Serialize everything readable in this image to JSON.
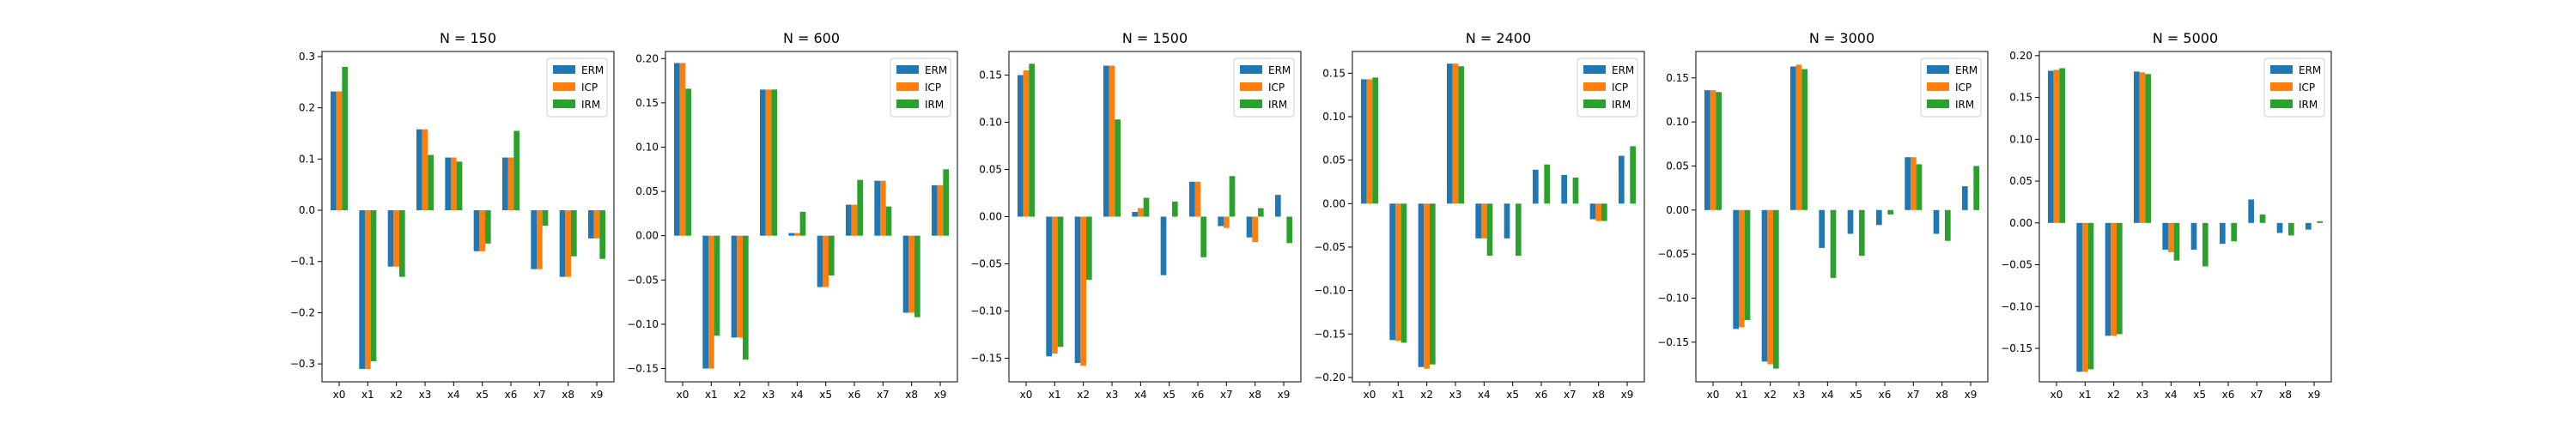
{
  "figure": {
    "background": "#ffffff"
  },
  "colors": {
    "ERM": "#1f77b4",
    "ICP": "#ff7f0e",
    "IRM": "#2ca02c"
  },
  "legend_entries": [
    "ERM",
    "ICP",
    "IRM"
  ],
  "legend_location": "upper right",
  "chart_data": [
    {
      "type": "bar",
      "title": "N = 150",
      "xlabel": "",
      "ylabel": "",
      "categories": [
        "x0",
        "x1",
        "x2",
        "x3",
        "x4",
        "x5",
        "x6",
        "x7",
        "x8",
        "x9"
      ],
      "series": [
        {
          "name": "ERM",
          "values": [
            0.232,
            -0.31,
            -0.11,
            0.158,
            0.103,
            -0.08,
            0.103,
            -0.115,
            -0.13,
            -0.055
          ]
        },
        {
          "name": "ICP",
          "values": [
            0.232,
            -0.31,
            -0.11,
            0.158,
            0.103,
            -0.08,
            0.103,
            -0.115,
            -0.13,
            -0.055
          ]
        },
        {
          "name": "IRM",
          "values": [
            0.28,
            -0.295,
            -0.13,
            0.108,
            0.095,
            -0.065,
            0.155,
            -0.03,
            -0.09,
            -0.095
          ]
        }
      ],
      "ylim": [
        -0.335,
        0.31
      ],
      "yticks": [
        -0.3,
        -0.2,
        -0.1,
        0.0,
        0.1,
        0.2,
        0.3
      ],
      "yticklabels": [
        "−0.3",
        "−0.2",
        "−0.1",
        "0.0",
        "0.1",
        "0.2",
        "0.3"
      ]
    },
    {
      "type": "bar",
      "title": "N = 600",
      "xlabel": "",
      "ylabel": "",
      "categories": [
        "x0",
        "x1",
        "x2",
        "x3",
        "x4",
        "x5",
        "x6",
        "x7",
        "x8",
        "x9"
      ],
      "series": [
        {
          "name": "ERM",
          "values": [
            0.195,
            -0.15,
            -0.115,
            0.165,
            0.003,
            -0.058,
            0.035,
            0.062,
            -0.087,
            0.057
          ]
        },
        {
          "name": "ICP",
          "values": [
            0.195,
            -0.15,
            -0.115,
            0.165,
            0.003,
            -0.058,
            0.035,
            0.062,
            -0.087,
            0.057
          ]
        },
        {
          "name": "IRM",
          "values": [
            0.166,
            -0.113,
            -0.14,
            0.165,
            0.027,
            -0.045,
            0.063,
            0.033,
            -0.092,
            0.075
          ]
        }
      ],
      "ylim": [
        -0.165,
        0.208
      ],
      "yticks": [
        -0.15,
        -0.1,
        -0.05,
        0.0,
        0.05,
        0.1,
        0.15,
        0.2
      ],
      "yticklabels": [
        "−0.15",
        "−0.10",
        "−0.05",
        "0.00",
        "0.05",
        "0.10",
        "0.15",
        "0.20"
      ]
    },
    {
      "type": "bar",
      "title": "N = 1500",
      "xlabel": "",
      "ylabel": "",
      "categories": [
        "x0",
        "x1",
        "x2",
        "x3",
        "x4",
        "x5",
        "x6",
        "x7",
        "x8",
        "x9"
      ],
      "series": [
        {
          "name": "ERM",
          "values": [
            0.15,
            -0.148,
            -0.155,
            0.16,
            0.005,
            -0.062,
            0.037,
            -0.01,
            -0.022,
            0.023
          ]
        },
        {
          "name": "ICP",
          "values": [
            0.155,
            -0.145,
            -0.158,
            0.16,
            0.009,
            0.0,
            0.037,
            -0.012,
            -0.027,
            0.0
          ]
        },
        {
          "name": "IRM",
          "values": [
            0.162,
            -0.138,
            -0.067,
            0.103,
            0.02,
            0.016,
            -0.043,
            0.043,
            0.009,
            -0.028
          ]
        }
      ],
      "ylim": [
        -0.175,
        0.175
      ],
      "yticks": [
        -0.15,
        -0.1,
        -0.05,
        0.0,
        0.05,
        0.1,
        0.15
      ],
      "yticklabels": [
        "−0.15",
        "−0.10",
        "−0.05",
        "0.00",
        "0.05",
        "0.10",
        "0.15"
      ]
    },
    {
      "type": "bar",
      "title": "N = 2400",
      "xlabel": "",
      "ylabel": "",
      "categories": [
        "x0",
        "x1",
        "x2",
        "x3",
        "x4",
        "x5",
        "x6",
        "x7",
        "x8",
        "x9"
      ],
      "series": [
        {
          "name": "ERM",
          "values": [
            0.143,
            -0.157,
            -0.188,
            0.161,
            -0.04,
            -0.04,
            0.039,
            0.033,
            -0.018,
            0.055
          ]
        },
        {
          "name": "ICP",
          "values": [
            0.143,
            -0.158,
            -0.19,
            0.161,
            -0.04,
            0.0,
            0.0,
            0.0,
            -0.02,
            0.0
          ]
        },
        {
          "name": "IRM",
          "values": [
            0.145,
            -0.16,
            -0.185,
            0.158,
            -0.06,
            -0.06,
            0.045,
            0.03,
            -0.02,
            0.066
          ]
        }
      ],
      "ylim": [
        -0.205,
        0.175
      ],
      "yticks": [
        -0.2,
        -0.15,
        -0.1,
        -0.05,
        0.0,
        0.05,
        0.1,
        0.15
      ],
      "yticklabels": [
        "−0.20",
        "−0.15",
        "−0.10",
        "−0.05",
        "0.00",
        "0.05",
        "0.10",
        "0.15"
      ]
    },
    {
      "type": "bar",
      "title": "N = 3000",
      "xlabel": "",
      "ylabel": "",
      "categories": [
        "x0",
        "x1",
        "x2",
        "x3",
        "x4",
        "x5",
        "x6",
        "x7",
        "x8",
        "x9"
      ],
      "series": [
        {
          "name": "ERM",
          "values": [
            0.136,
            -0.135,
            -0.172,
            0.163,
            -0.043,
            -0.027,
            -0.017,
            0.06,
            -0.027,
            0.027
          ]
        },
        {
          "name": "ICP",
          "values": [
            0.136,
            -0.133,
            -0.175,
            0.165,
            0.0,
            0.0,
            0.0,
            0.06,
            0.0,
            0.0
          ]
        },
        {
          "name": "IRM",
          "values": [
            0.134,
            -0.125,
            -0.18,
            0.16,
            -0.077,
            -0.052,
            -0.005,
            0.052,
            -0.035,
            0.05
          ]
        }
      ],
      "ylim": [
        -0.195,
        0.18
      ],
      "yticks": [
        -0.15,
        -0.1,
        -0.05,
        0.0,
        0.05,
        0.1,
        0.15
      ],
      "yticklabels": [
        "−0.15",
        "−0.10",
        "−0.05",
        "0.00",
        "0.05",
        "0.10",
        "0.15"
      ]
    },
    {
      "type": "bar",
      "title": "N = 5000",
      "xlabel": "",
      "ylabel": "",
      "categories": [
        "x0",
        "x1",
        "x2",
        "x3",
        "x4",
        "x5",
        "x6",
        "x7",
        "x8",
        "x9"
      ],
      "series": [
        {
          "name": "ERM",
          "values": [
            0.182,
            -0.178,
            -0.135,
            0.181,
            -0.032,
            -0.032,
            -0.025,
            0.028,
            -0.012,
            -0.008
          ]
        },
        {
          "name": "ICP",
          "values": [
            0.183,
            -0.178,
            -0.135,
            0.18,
            -0.035,
            0.0,
            0.0,
            0.0,
            0.0,
            0.0
          ]
        },
        {
          "name": "IRM",
          "values": [
            0.185,
            -0.175,
            -0.133,
            0.178,
            -0.045,
            -0.052,
            -0.022,
            0.01,
            -0.015,
            0.002
          ]
        }
      ],
      "ylim": [
        -0.19,
        0.205
      ],
      "yticks": [
        -0.15,
        -0.1,
        -0.05,
        0.0,
        0.05,
        0.1,
        0.15,
        0.2
      ],
      "yticklabels": [
        "−0.15",
        "−0.10",
        "−0.05",
        "0.00",
        "0.05",
        "0.10",
        "0.15",
        "0.20"
      ]
    }
  ]
}
